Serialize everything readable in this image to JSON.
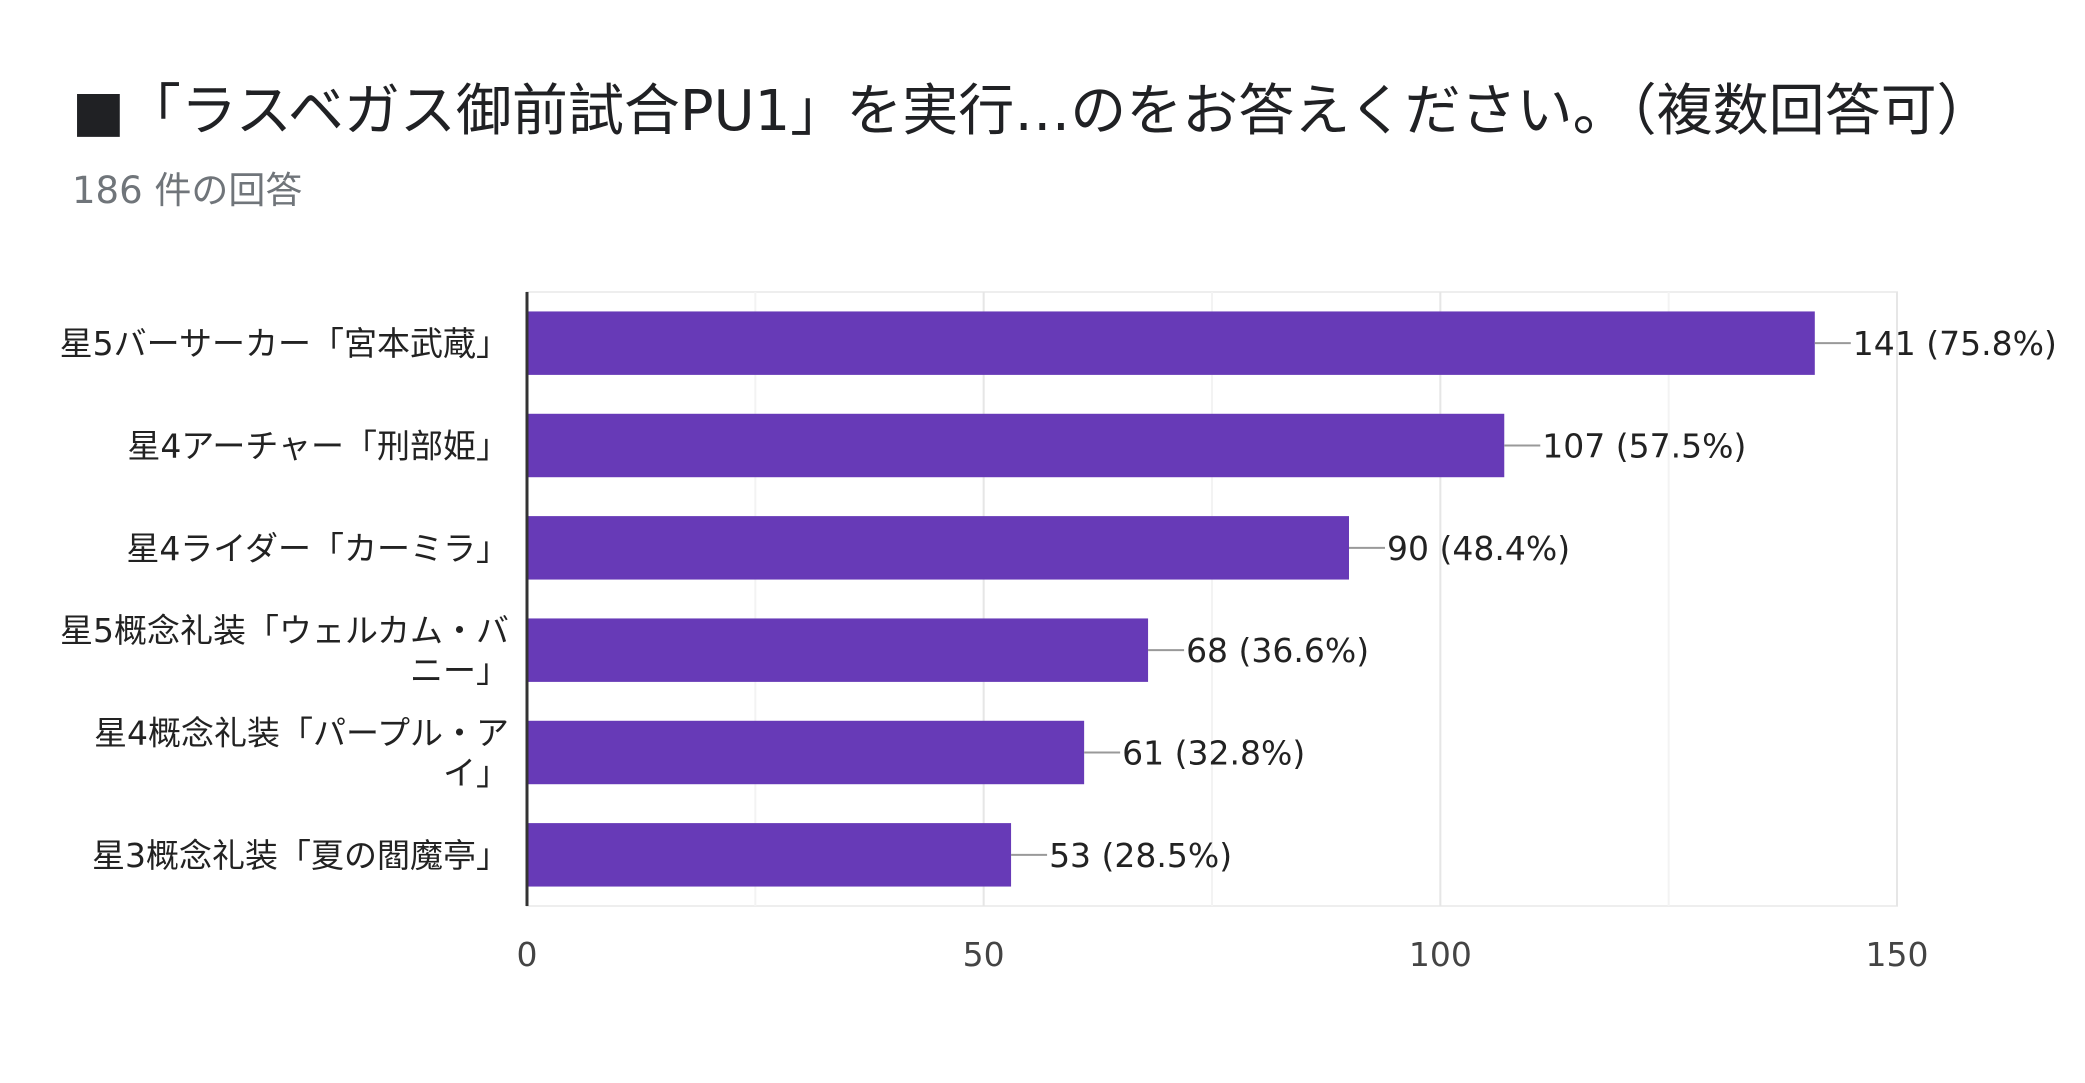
{
  "header": {
    "title": "■「ラスベガス御前試合PU1」を実行…のをお答えください。（複数回答可）",
    "response_count": "186 件の回答"
  },
  "chart_data": {
    "type": "bar",
    "orientation": "horizontal",
    "categories": [
      "星5バーサーカー「宮本武蔵」",
      "星4アーチャー「刑部姫」",
      "星4ライダー「カーミラ」",
      "星5概念礼装「ウェルカム・バニー」",
      "星4概念礼装「パープル・アイ」",
      "星3概念礼装「夏の閻魔亭」"
    ],
    "category_lines": [
      [
        "星5バーサーカー「宮本武蔵」"
      ],
      [
        "星4アーチャー「刑部姫」"
      ],
      [
        "星4ライダー「カーミラ」"
      ],
      [
        "星5概念礼装「ウェルカム・バ",
        "ニー」"
      ],
      [
        "星4概念礼装「パープル・ア",
        "イ」"
      ],
      [
        "星3概念礼装「夏の閻魔亭」"
      ]
    ],
    "values": [
      141,
      107,
      90,
      68,
      61,
      53
    ],
    "data_labels": [
      "141 (75.8%)",
      "107 (57.5%)",
      "90 (48.4%)",
      "68 (36.6%)",
      "61 (32.8%)",
      "53 (28.5%)"
    ],
    "xlim": [
      0,
      150
    ],
    "x_ticks": [
      0,
      50,
      100,
      150
    ],
    "x_tick_labels": [
      "0",
      "50",
      "100",
      "150"
    ],
    "grid": true,
    "legend": "none",
    "bar_color": "#673ab7"
  }
}
